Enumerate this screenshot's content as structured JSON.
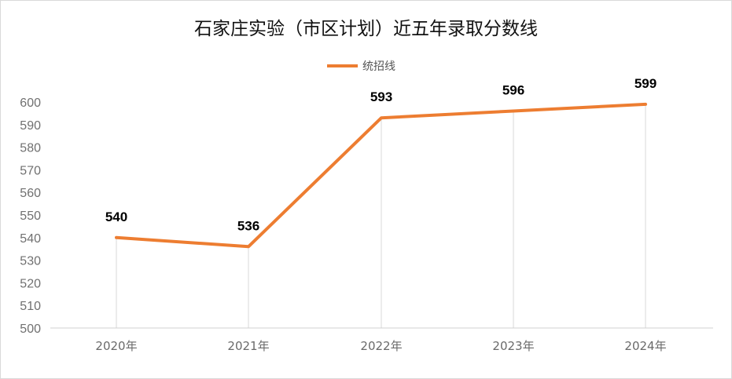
{
  "chart_data": {
    "type": "line",
    "title": "石家庄实验（市区计划）近五年录取分数线",
    "categories": [
      "2020年",
      "2021年",
      "2022年",
      "2023年",
      "2024年"
    ],
    "series": [
      {
        "name": "统招线",
        "values": [
          540,
          536,
          593,
          596,
          599
        ],
        "color": "#ED7D31"
      }
    ],
    "data_labels": [
      "540",
      "536",
      "593",
      "596",
      "599"
    ],
    "ylim": [
      500,
      600
    ],
    "yticks": [
      "500",
      "510",
      "520",
      "530",
      "540",
      "550",
      "560",
      "570",
      "580",
      "590",
      "600"
    ],
    "xlabel": "",
    "ylabel": "",
    "legend": "top-center",
    "grid": "vertical drop lines at categories"
  }
}
